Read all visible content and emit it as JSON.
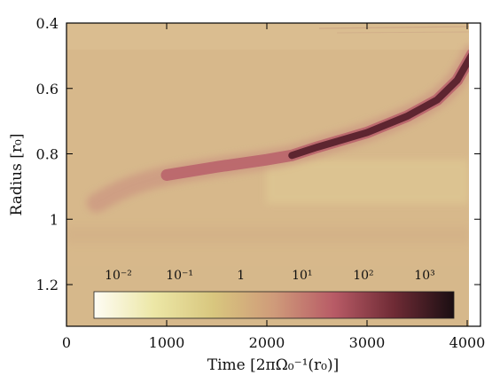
{
  "chart_data": {
    "type": "heatmap",
    "title": "",
    "xlabel": "Time [2πΩ₀⁻¹(r₀)]",
    "ylabel": "Radius [r₀]",
    "xlim": [
      0,
      4150
    ],
    "ylim": [
      1.33,
      0.4
    ],
    "y_inverted": true,
    "x_ticks": [
      0,
      1000,
      2000,
      3000,
      4000
    ],
    "x_tick_labels": [
      "0",
      "1000",
      "2000",
      "3000",
      "4000"
    ],
    "y_ticks": [
      0.4,
      0.6,
      0.8,
      1.0,
      1.2
    ],
    "y_tick_labels": [
      "0.4",
      "0.6",
      "0.8",
      "1",
      "1.2"
    ],
    "colorbar": {
      "scale": "log",
      "range": [
        0.004,
        3000
      ],
      "ticks": [
        0.01,
        0.1,
        1,
        10,
        100,
        1000
      ],
      "tick_labels": [
        "10⁻²",
        "10⁻¹",
        "1",
        "10¹",
        "10²",
        "10³"
      ],
      "colors": [
        "#fefcf4",
        "#ece7a6",
        "#d8c67e",
        "#cf9b7a",
        "#b85b66",
        "#6f2b35",
        "#1a0e12"
      ]
    },
    "background_color": "#d8b88a",
    "track": {
      "description": "dense ring migrating inward",
      "points": [
        {
          "t": 300,
          "r": 0.95
        },
        {
          "t": 600,
          "r": 0.9
        },
        {
          "t": 1000,
          "r": 0.865
        },
        {
          "t": 1500,
          "r": 0.84
        },
        {
          "t": 2000,
          "r": 0.818
        },
        {
          "t": 2250,
          "r": 0.805
        },
        {
          "t": 2500,
          "r": 0.78
        },
        {
          "t": 3000,
          "r": 0.735
        },
        {
          "t": 3400,
          "r": 0.685
        },
        {
          "t": 3700,
          "r": 0.635
        },
        {
          "t": 3900,
          "r": 0.575
        },
        {
          "t": 4050,
          "r": 0.495
        }
      ]
    }
  }
}
